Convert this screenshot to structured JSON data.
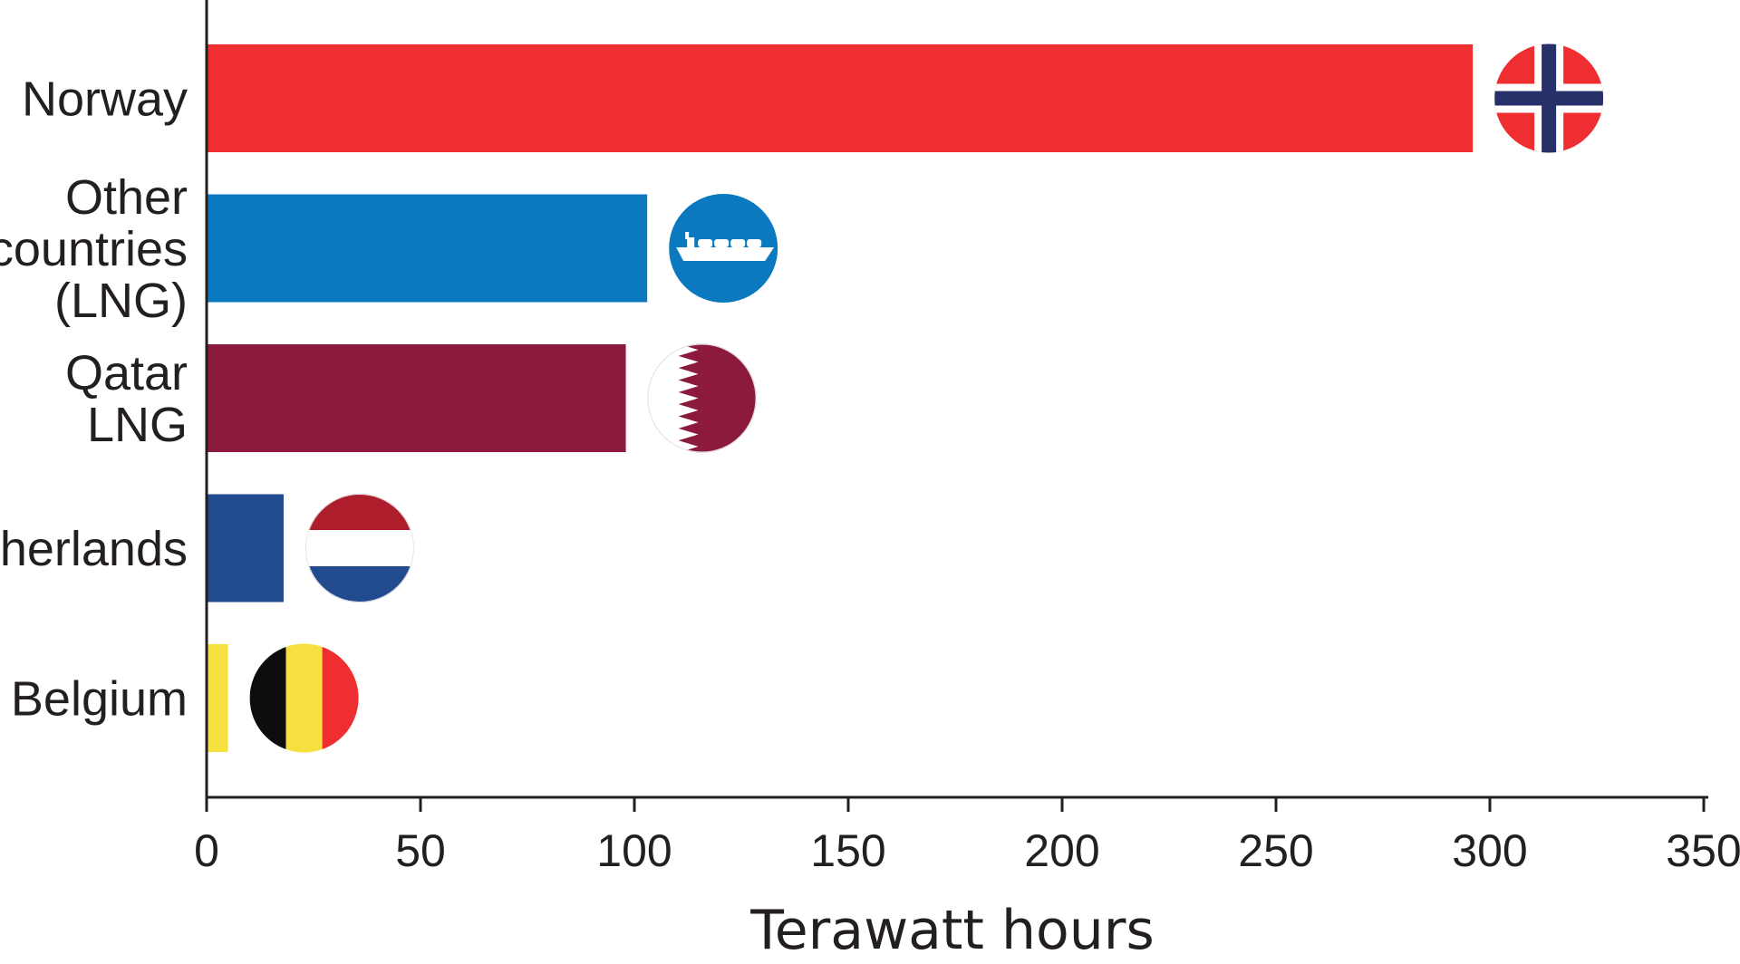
{
  "chart_data": {
    "type": "bar",
    "orientation": "horizontal",
    "categories": [
      [
        "Norway"
      ],
      [
        "Other",
        "countries",
        "(LNG)"
      ],
      [
        "Qatar",
        "LNG"
      ],
      [
        "Netherlands"
      ],
      [
        "Belgium"
      ]
    ],
    "values": [
      296,
      103,
      98,
      18,
      5
    ],
    "colors": [
      "#ee2e31",
      "#0a79bf",
      "#8c1a3c",
      "#214a8f",
      "#f5e040"
    ],
    "icons": [
      "norway-flag-icon",
      "lng-ship-icon",
      "qatar-flag-icon",
      "netherlands-flag-icon",
      "belgium-flag-icon"
    ],
    "xlabel": "Terawatt hours",
    "xlim": [
      0,
      350
    ],
    "xticks": [
      0,
      50,
      100,
      150,
      200,
      250,
      300,
      350
    ],
    "grid": false,
    "legend": "none"
  }
}
